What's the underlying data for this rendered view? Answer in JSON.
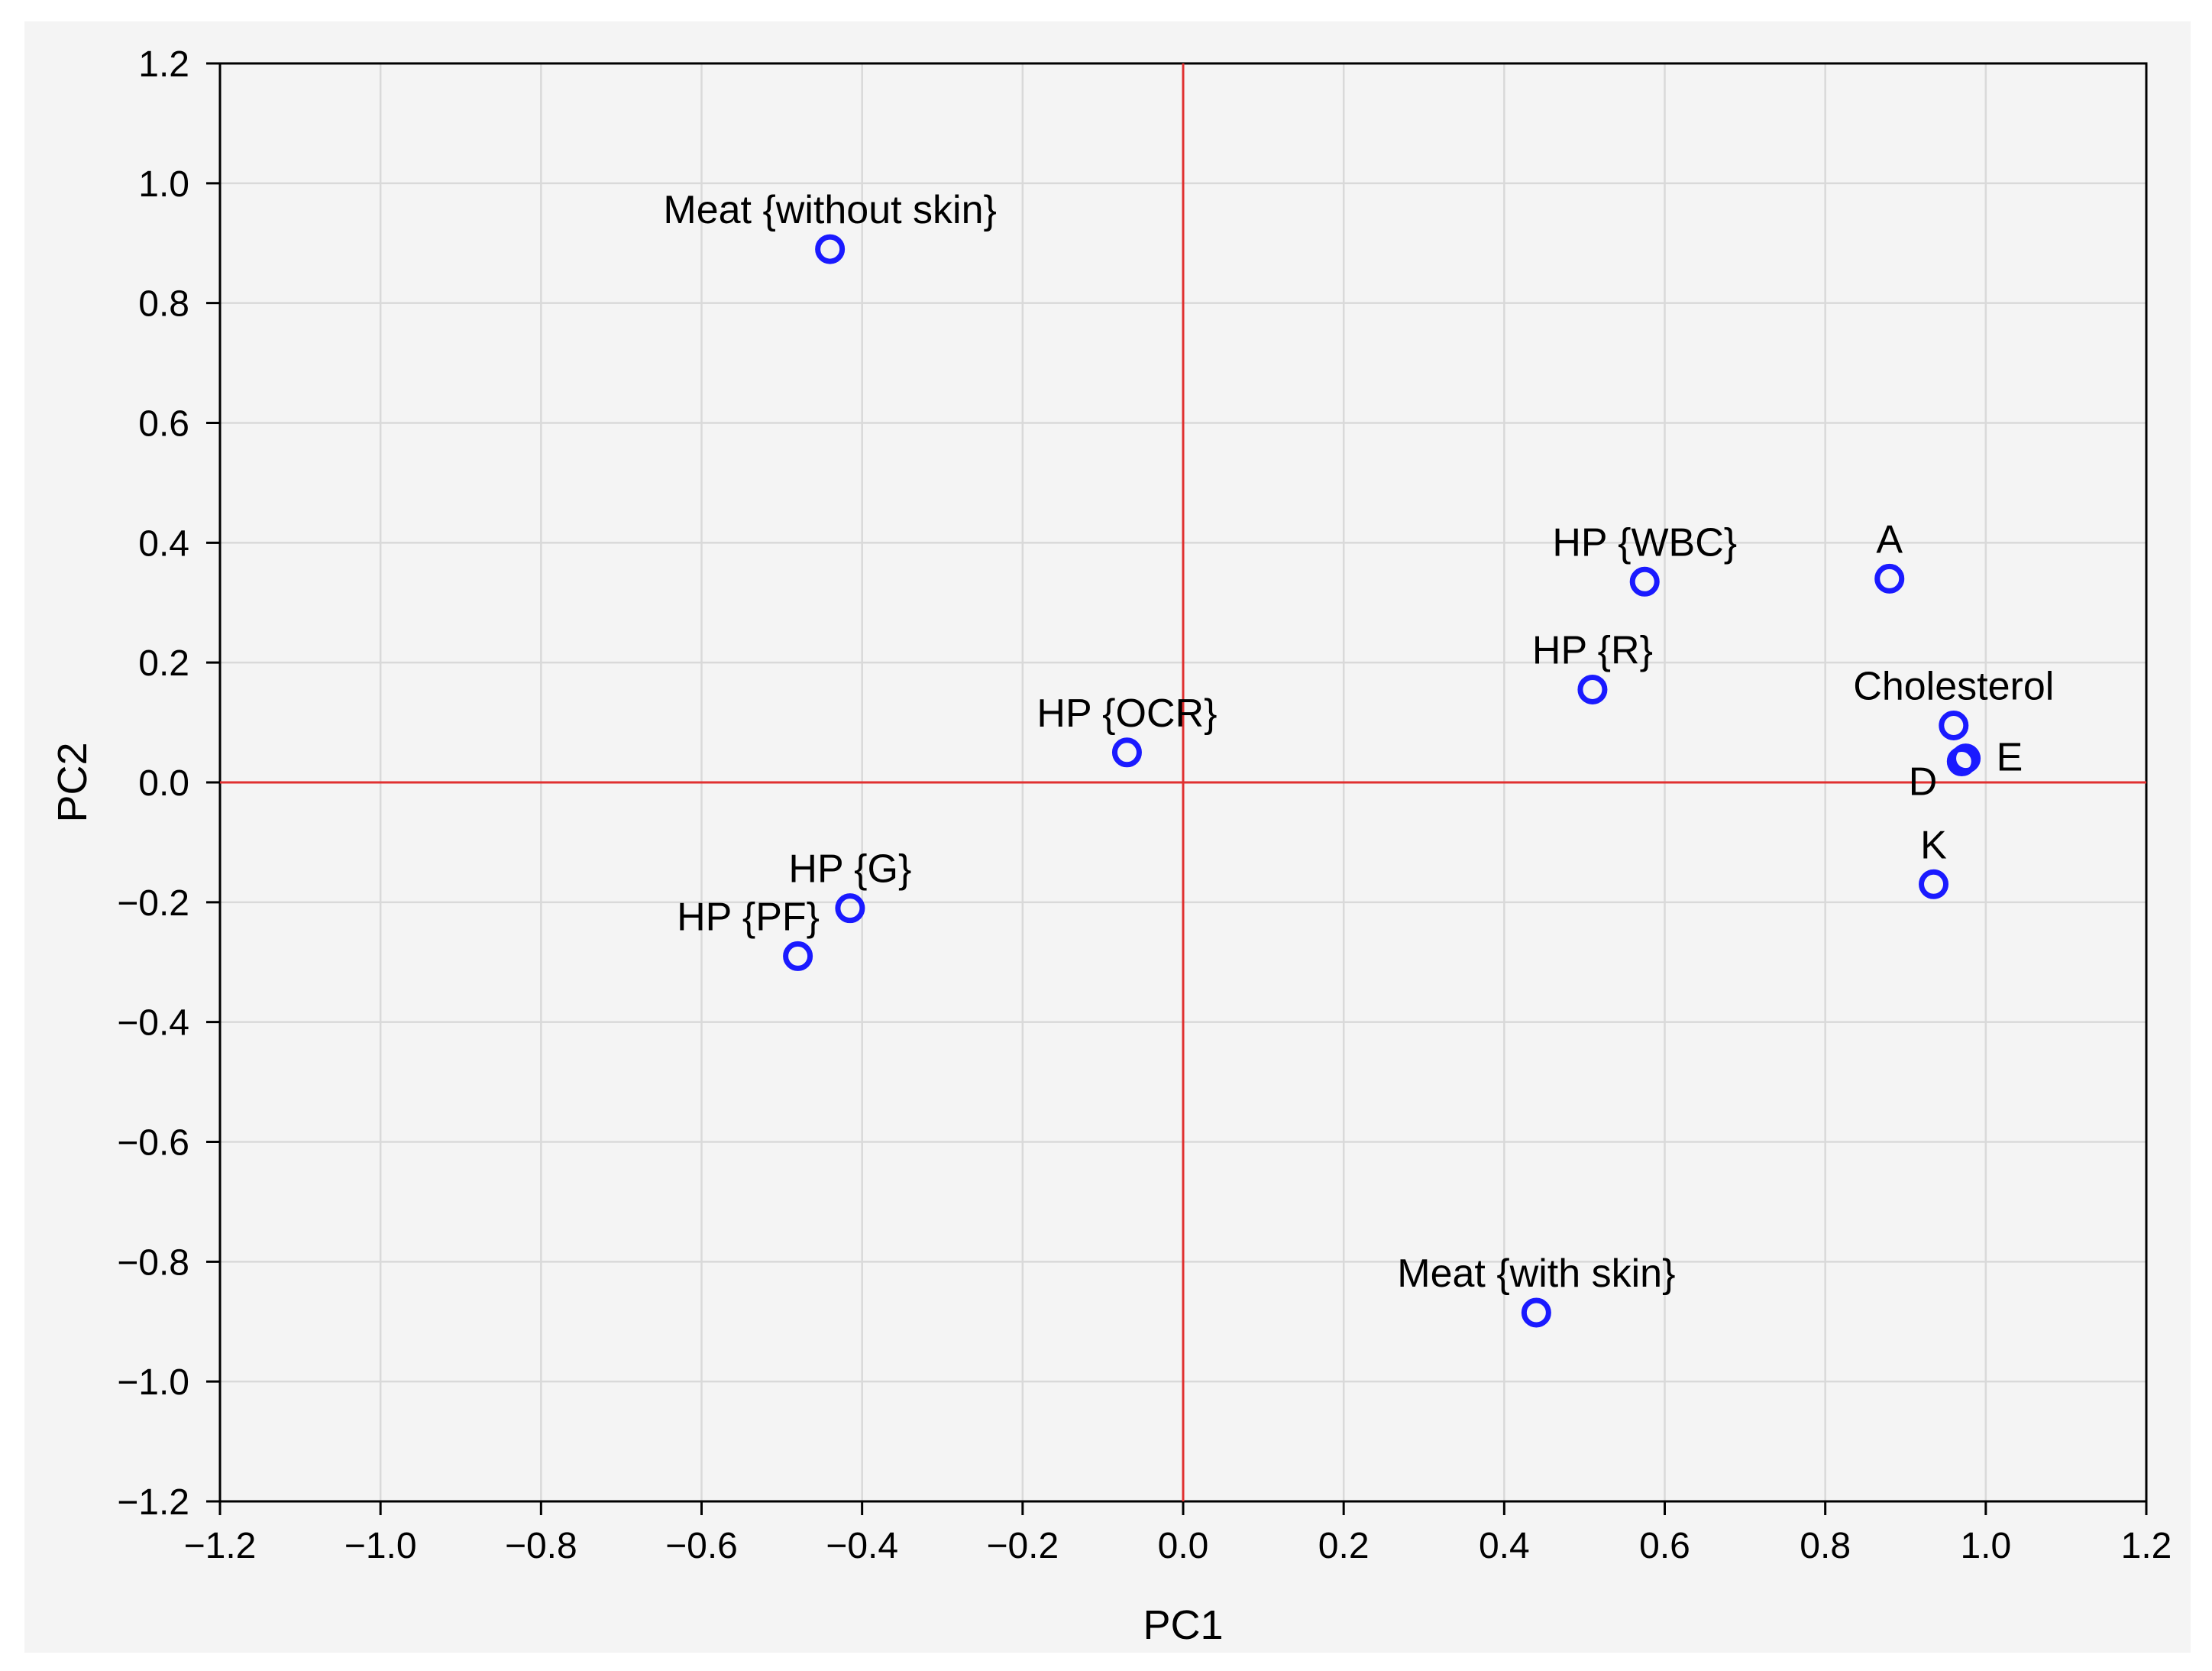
{
  "chart_data": {
    "type": "scatter",
    "title": "",
    "xlabel": "PC1",
    "ylabel": "PC2",
    "xlim": [
      -1.2,
      1.2
    ],
    "ylim": [
      -1.2,
      1.2
    ],
    "xticks": [
      "−1.2",
      "−1.0",
      "−0.8",
      "−0.6",
      "−0.4",
      "−0.2",
      "0.0",
      "0.2",
      "0.4",
      "0.6",
      "0.8",
      "1.0",
      "1.2"
    ],
    "yticks": [
      "1.2",
      "1.0",
      "0.8",
      "0.6",
      "0.4",
      "0.2",
      "0.0",
      "−0.2",
      "−0.4",
      "−0.6",
      "−0.8",
      "−1.0",
      "−1.2"
    ],
    "grid": true,
    "reference_lines": {
      "x": 0,
      "y": 0,
      "color": "#e03030"
    },
    "marker_color": "#1a1aff",
    "points": [
      {
        "label": "Meat {without skin}",
        "x": -0.44,
        "y": 0.89,
        "label_pos": "above"
      },
      {
        "label": "HP {WBC}",
        "x": 0.575,
        "y": 0.335,
        "label_pos": "above"
      },
      {
        "label": "A",
        "x": 0.88,
        "y": 0.34,
        "label_pos": "above"
      },
      {
        "label": "HP {R}",
        "x": 0.51,
        "y": 0.155,
        "label_pos": "above"
      },
      {
        "label": "Cholesterol",
        "x": 0.96,
        "y": 0.095,
        "label_pos": "above"
      },
      {
        "label": "HP {OCR}",
        "x": -0.07,
        "y": 0.05,
        "label_pos": "above"
      },
      {
        "label": "E",
        "x": 0.975,
        "y": 0.04,
        "label_pos": "right"
      },
      {
        "label": "D",
        "x": 0.97,
        "y": 0.035,
        "label_pos": "below-left"
      },
      {
        "label": "K",
        "x": 0.935,
        "y": -0.17,
        "label_pos": "above"
      },
      {
        "label": "HP {G}",
        "x": -0.415,
        "y": -0.21,
        "label_pos": "above"
      },
      {
        "label": "HP {PF}",
        "x": -0.48,
        "y": -0.29,
        "label_pos": "above-left"
      },
      {
        "label": "Meat {with skin}",
        "x": 0.44,
        "y": -0.885,
        "label_pos": "above"
      }
    ]
  }
}
